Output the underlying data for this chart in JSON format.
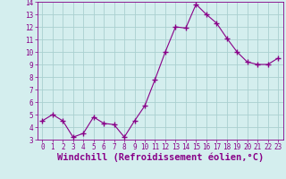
{
  "x": [
    0,
    1,
    2,
    3,
    4,
    5,
    6,
    7,
    8,
    9,
    10,
    11,
    12,
    13,
    14,
    15,
    16,
    17,
    18,
    19,
    20,
    21,
    22,
    23
  ],
  "y": [
    4.5,
    5.0,
    4.5,
    3.2,
    3.5,
    4.8,
    4.3,
    4.2,
    3.2,
    4.5,
    5.7,
    7.8,
    10.0,
    12.0,
    11.9,
    13.8,
    13.0,
    12.3,
    11.1,
    10.0,
    9.2,
    9.0,
    9.0,
    9.5
  ],
  "line_color": "#880088",
  "marker": "+",
  "marker_size": 4,
  "bg_color": "#d4eeee",
  "grid_color": "#aad0d0",
  "xlabel": "Windchill (Refroidissement éolien,°C)",
  "xlabel_color": "#880088",
  "ylim": [
    3,
    14
  ],
  "xlim": [
    -0.5,
    23.5
  ],
  "yticks": [
    3,
    4,
    5,
    6,
    7,
    8,
    9,
    10,
    11,
    12,
    13,
    14
  ],
  "xticks": [
    0,
    1,
    2,
    3,
    4,
    5,
    6,
    7,
    8,
    9,
    10,
    11,
    12,
    13,
    14,
    15,
    16,
    17,
    18,
    19,
    20,
    21,
    22,
    23
  ],
  "tick_color": "#880088",
  "tick_fontsize": 5.5,
  "xlabel_fontsize": 7.5
}
